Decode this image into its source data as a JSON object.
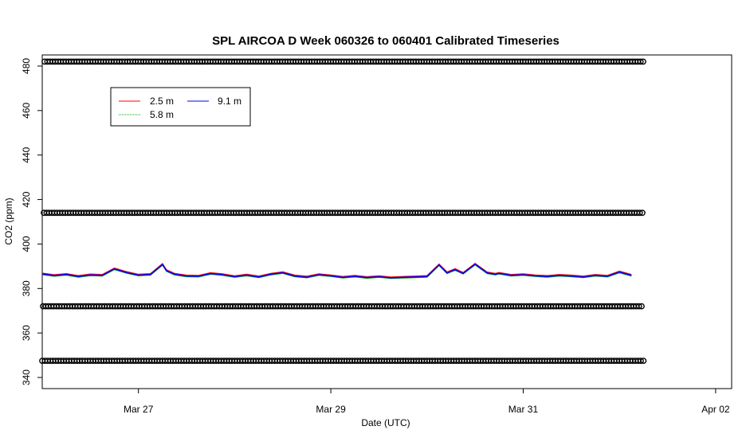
{
  "chart_data": {
    "type": "line",
    "title": "SPL AIRCOA D  Week 060326 to 060401  Calibrated Timeseries",
    "xlabel": "Date (UTC)",
    "ylabel": "CO2 (ppm)",
    "xlim": [
      "2006-03-26 00:00",
      "2006-04-02 04:00"
    ],
    "ylim": [
      335,
      485
    ],
    "x_ticks": [
      {
        "date": "2006-03-27",
        "label": "Mar 27"
      },
      {
        "date": "2006-03-29",
        "label": "Mar 29"
      },
      {
        "date": "2006-03-31",
        "label": "Mar 31"
      },
      {
        "date": "2006-04-02",
        "label": "Apr 02"
      }
    ],
    "y_ticks": [
      340,
      360,
      380,
      400,
      420,
      440,
      460,
      480
    ],
    "legend": {
      "placement": "top-left",
      "entries": [
        {
          "label": "2.5 m",
          "color": "#ff0000"
        },
        {
          "label": "5.8 m",
          "color": "#00aa00"
        },
        {
          "label": "9.1 m",
          "color": "#0000ff"
        }
      ]
    },
    "series": [
      {
        "name": "9.1 m",
        "color": "#0000ff",
        "x": [
          "2006-03-26 00:00",
          "2006-03-26 03:00",
          "2006-03-26 06:00",
          "2006-03-26 09:00",
          "2006-03-26 12:00",
          "2006-03-26 15:00",
          "2006-03-26 18:00",
          "2006-03-26 21:00",
          "2006-03-27 00:00",
          "2006-03-27 03:00",
          "2006-03-27 06:00",
          "2006-03-27 07:00",
          "2006-03-27 09:00",
          "2006-03-27 12:00",
          "2006-03-27 15:00",
          "2006-03-27 18:00",
          "2006-03-27 21:00",
          "2006-03-28 00:00",
          "2006-03-28 03:00",
          "2006-03-28 06:00",
          "2006-03-28 09:00",
          "2006-03-28 12:00",
          "2006-03-28 15:00",
          "2006-03-28 18:00",
          "2006-03-28 21:00",
          "2006-03-29 00:00",
          "2006-03-29 03:00",
          "2006-03-29 06:00",
          "2006-03-29 09:00",
          "2006-03-29 12:00",
          "2006-03-29 15:00",
          "2006-03-29 18:00",
          "2006-03-29 21:00",
          "2006-03-30 00:00",
          "2006-03-30 03:00",
          "2006-03-30 05:00",
          "2006-03-30 07:00",
          "2006-03-30 09:00",
          "2006-03-30 12:00",
          "2006-03-30 15:00",
          "2006-03-30 17:00",
          "2006-03-30 18:00",
          "2006-03-30 21:00",
          "2006-03-31 00:00",
          "2006-03-31 03:00",
          "2006-03-31 06:00",
          "2006-03-31 09:00",
          "2006-03-31 12:00",
          "2006-03-31 15:00",
          "2006-03-31 18:00",
          "2006-03-31 21:00",
          "2006-04-01 00:00",
          "2006-04-01 03:00"
        ],
        "values": [
          386.5,
          385.8,
          386.3,
          385.4,
          386.1,
          385.9,
          388.8,
          387.2,
          386.0,
          386.3,
          390.8,
          388.0,
          386.4,
          385.6,
          385.5,
          386.7,
          386.2,
          385.3,
          386.0,
          385.2,
          386.4,
          387.1,
          385.6,
          385.1,
          386.2,
          385.7,
          385.0,
          385.5,
          384.9,
          385.3,
          384.8,
          385.0,
          385.2,
          385.4,
          390.6,
          387.0,
          388.5,
          386.8,
          390.9,
          387.0,
          386.4,
          386.8,
          385.9,
          386.2,
          385.7,
          385.4,
          385.9,
          385.6,
          385.2,
          385.9,
          385.5,
          387.4,
          385.9
        ]
      }
    ],
    "marker_rows": [
      {
        "y": 347.5
      },
      {
        "y": 372.0
      },
      {
        "y": 414.0
      },
      {
        "y": 482.0
      }
    ]
  }
}
